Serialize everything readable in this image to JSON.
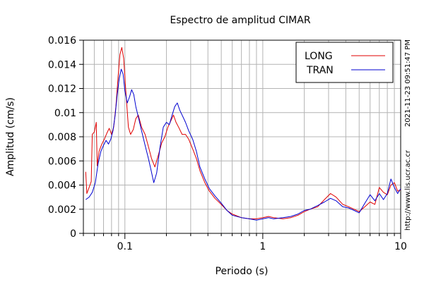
{
  "chart_data": {
    "type": "line",
    "title": "Espectro de amplitud CIMAR",
    "xlabel": "Periodo (s)",
    "ylabel": "Amplitud (cm/s)",
    "xscale": "log",
    "xlim": [
      0.05,
      10
    ],
    "ylim": [
      0,
      0.016
    ],
    "grid": true,
    "legend_position": "top-right",
    "x_ticks": [
      {
        "value": 0.1,
        "label": "0.1"
      },
      {
        "value": 1,
        "label": "1"
      },
      {
        "value": 10,
        "label": "10"
      }
    ],
    "y_ticks": [
      {
        "value": 0,
        "label": "0"
      },
      {
        "value": 0.002,
        "label": "0.002"
      },
      {
        "value": 0.004,
        "label": "0.004"
      },
      {
        "value": 0.006,
        "label": "0.006"
      },
      {
        "value": 0.008,
        "label": "0.008"
      },
      {
        "value": 0.01,
        "label": "0.01"
      },
      {
        "value": 0.012,
        "label": "0.012"
      },
      {
        "value": 0.014,
        "label": "0.014"
      },
      {
        "value": 0.016,
        "label": "0.016"
      }
    ],
    "series": [
      {
        "name": "LONG",
        "color": "#e00000",
        "points": [
          [
            0.052,
            0.0051
          ],
          [
            0.053,
            0.0033
          ],
          [
            0.055,
            0.0038
          ],
          [
            0.057,
            0.0043
          ],
          [
            0.058,
            0.0082
          ],
          [
            0.06,
            0.0084
          ],
          [
            0.062,
            0.0092
          ],
          [
            0.063,
            0.0056
          ],
          [
            0.065,
            0.0068
          ],
          [
            0.068,
            0.0074
          ],
          [
            0.071,
            0.0078
          ],
          [
            0.074,
            0.0083
          ],
          [
            0.077,
            0.0087
          ],
          [
            0.08,
            0.0082
          ],
          [
            0.083,
            0.0088
          ],
          [
            0.086,
            0.0105
          ],
          [
            0.089,
            0.0128
          ],
          [
            0.092,
            0.0148
          ],
          [
            0.095,
            0.0154
          ],
          [
            0.098,
            0.0145
          ],
          [
            0.102,
            0.0115
          ],
          [
            0.106,
            0.0088
          ],
          [
            0.11,
            0.0082
          ],
          [
            0.115,
            0.0086
          ],
          [
            0.12,
            0.0095
          ],
          [
            0.125,
            0.0098
          ],
          [
            0.132,
            0.0088
          ],
          [
            0.14,
            0.0082
          ],
          [
            0.148,
            0.0072
          ],
          [
            0.156,
            0.0062
          ],
          [
            0.165,
            0.0055
          ],
          [
            0.175,
            0.0065
          ],
          [
            0.185,
            0.0075
          ],
          [
            0.195,
            0.008
          ],
          [
            0.205,
            0.0088
          ],
          [
            0.215,
            0.0093
          ],
          [
            0.225,
            0.0098
          ],
          [
            0.235,
            0.0092
          ],
          [
            0.245,
            0.0088
          ],
          [
            0.26,
            0.0082
          ],
          [
            0.275,
            0.0082
          ],
          [
            0.29,
            0.0078
          ],
          [
            0.31,
            0.007
          ],
          [
            0.33,
            0.0062
          ],
          [
            0.35,
            0.0052
          ],
          [
            0.38,
            0.0042
          ],
          [
            0.41,
            0.0035
          ],
          [
            0.45,
            0.0029
          ],
          [
            0.5,
            0.0024
          ],
          [
            0.55,
            0.0019
          ],
          [
            0.6,
            0.0016
          ],
          [
            0.7,
            0.0013
          ],
          [
            0.8,
            0.0012
          ],
          [
            0.9,
            0.0012
          ],
          [
            1.0,
            0.0013
          ],
          [
            1.1,
            0.0014
          ],
          [
            1.2,
            0.0013
          ],
          [
            1.4,
            0.0012
          ],
          [
            1.6,
            0.0013
          ],
          [
            1.8,
            0.0015
          ],
          [
            2.0,
            0.0018
          ],
          [
            2.2,
            0.002
          ],
          [
            2.5,
            0.0022
          ],
          [
            2.8,
            0.0028
          ],
          [
            3.1,
            0.0033
          ],
          [
            3.4,
            0.003
          ],
          [
            3.8,
            0.0024
          ],
          [
            4.2,
            0.0022
          ],
          [
            4.6,
            0.002
          ],
          [
            5.0,
            0.0018
          ],
          [
            5.5,
            0.0022
          ],
          [
            6.0,
            0.0026
          ],
          [
            6.5,
            0.0024
          ],
          [
            7.0,
            0.0038
          ],
          [
            7.5,
            0.0034
          ],
          [
            8.0,
            0.0032
          ],
          [
            8.5,
            0.004
          ],
          [
            9.0,
            0.0042
          ],
          [
            9.5,
            0.0035
          ],
          [
            10.0,
            0.0036
          ]
        ]
      },
      {
        "name": "TRAN",
        "color": "#0000d0",
        "points": [
          [
            0.052,
            0.0028
          ],
          [
            0.055,
            0.003
          ],
          [
            0.058,
            0.0034
          ],
          [
            0.061,
            0.0042
          ],
          [
            0.064,
            0.0058
          ],
          [
            0.067,
            0.0068
          ],
          [
            0.07,
            0.0073
          ],
          [
            0.073,
            0.0077
          ],
          [
            0.076,
            0.0074
          ],
          [
            0.079,
            0.0078
          ],
          [
            0.082,
            0.0085
          ],
          [
            0.085,
            0.0098
          ],
          [
            0.088,
            0.0115
          ],
          [
            0.091,
            0.0128
          ],
          [
            0.094,
            0.0136
          ],
          [
            0.097,
            0.0132
          ],
          [
            0.1,
            0.0118
          ],
          [
            0.104,
            0.0108
          ],
          [
            0.108,
            0.0113
          ],
          [
            0.112,
            0.0119
          ],
          [
            0.116,
            0.0115
          ],
          [
            0.12,
            0.0105
          ],
          [
            0.126,
            0.0095
          ],
          [
            0.132,
            0.0085
          ],
          [
            0.14,
            0.0073
          ],
          [
            0.148,
            0.0062
          ],
          [
            0.155,
            0.0052
          ],
          [
            0.162,
            0.0042
          ],
          [
            0.17,
            0.005
          ],
          [
            0.18,
            0.0072
          ],
          [
            0.19,
            0.0088
          ],
          [
            0.2,
            0.0092
          ],
          [
            0.21,
            0.009
          ],
          [
            0.22,
            0.0098
          ],
          [
            0.23,
            0.0105
          ],
          [
            0.24,
            0.0108
          ],
          [
            0.25,
            0.0102
          ],
          [
            0.26,
            0.0098
          ],
          [
            0.275,
            0.0092
          ],
          [
            0.29,
            0.0085
          ],
          [
            0.31,
            0.0078
          ],
          [
            0.33,
            0.0068
          ],
          [
            0.35,
            0.0055
          ],
          [
            0.38,
            0.0045
          ],
          [
            0.41,
            0.0037
          ],
          [
            0.45,
            0.0031
          ],
          [
            0.5,
            0.0025
          ],
          [
            0.55,
            0.0019
          ],
          [
            0.6,
            0.0015
          ],
          [
            0.7,
            0.0013
          ],
          [
            0.8,
            0.0012
          ],
          [
            0.9,
            0.0011
          ],
          [
            1.0,
            0.0012
          ],
          [
            1.1,
            0.0013
          ],
          [
            1.2,
            0.0012
          ],
          [
            1.4,
            0.0013
          ],
          [
            1.6,
            0.0014
          ],
          [
            1.8,
            0.0016
          ],
          [
            2.0,
            0.0019
          ],
          [
            2.2,
            0.002
          ],
          [
            2.5,
            0.0023
          ],
          [
            2.8,
            0.0026
          ],
          [
            3.1,
            0.0029
          ],
          [
            3.4,
            0.0027
          ],
          [
            3.8,
            0.0022
          ],
          [
            4.2,
            0.0021
          ],
          [
            4.6,
            0.0019
          ],
          [
            5.0,
            0.0017
          ],
          [
            5.5,
            0.0025
          ],
          [
            6.0,
            0.0032
          ],
          [
            6.5,
            0.0027
          ],
          [
            7.0,
            0.0033
          ],
          [
            7.5,
            0.0028
          ],
          [
            8.0,
            0.0033
          ],
          [
            8.5,
            0.0045
          ],
          [
            9.0,
            0.0038
          ],
          [
            9.5,
            0.0033
          ],
          [
            10.0,
            0.0037
          ]
        ]
      }
    ]
  },
  "side_annotations": {
    "timestamp": "2021-11-23 09:51:47 PM",
    "url": "http://www.lis.ucr.ac.cr"
  }
}
